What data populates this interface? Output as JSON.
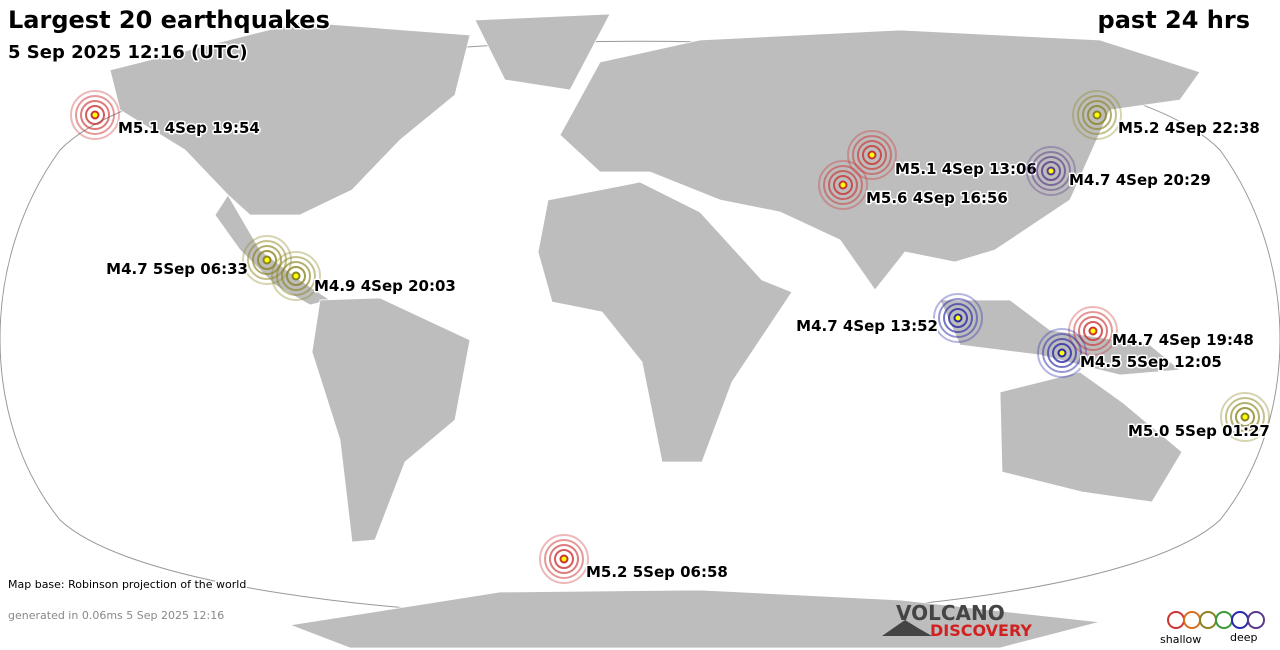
{
  "header": {
    "title": "Largest 20 earthquakes",
    "period": "past 24 hrs",
    "timestamp": "5 Sep 2025 12:16 (UTC)"
  },
  "quakes": [
    {
      "label": "M5.1  4Sep 19:54",
      "color": "#cc3333"
    },
    {
      "label": "M5.2  4Sep 22:38",
      "color": "#8a8420"
    },
    {
      "label": "M5.1  4Sep 13:06",
      "color": "#cc3333"
    },
    {
      "label": "M4.7  4Sep 20:29",
      "color": "#5a3a8a"
    },
    {
      "label": "M5.6  4Sep 16:56",
      "color": "#cc3333"
    },
    {
      "label": "M4.7  5Sep 06:33",
      "color": "#8a8420"
    },
    {
      "label": "M4.9  4Sep 20:03",
      "color": "#8a8420"
    },
    {
      "label": "M4.7  4Sep 13:52",
      "color": "#2a2aa8"
    },
    {
      "label": "M4.7  4Sep 19:48",
      "color": "#cc3333"
    },
    {
      "label": "M4.5  5Sep 12:05",
      "color": "#2a2aa8"
    },
    {
      "label": "M5.0  5Sep 01:27",
      "color": "#8a8420"
    },
    {
      "label": "M5.2  5Sep 06:58",
      "color": "#cc3333"
    }
  ],
  "footer": {
    "map_base": "Map base: Robinson projection of the world",
    "generated": "generated in 0.06ms  5 Sep 2025 12:16"
  },
  "logo": {
    "line1": "VOLCANO",
    "line2": "DISCOVERY"
  },
  "legend": {
    "shallow": "shallow",
    "deep": "deep"
  }
}
